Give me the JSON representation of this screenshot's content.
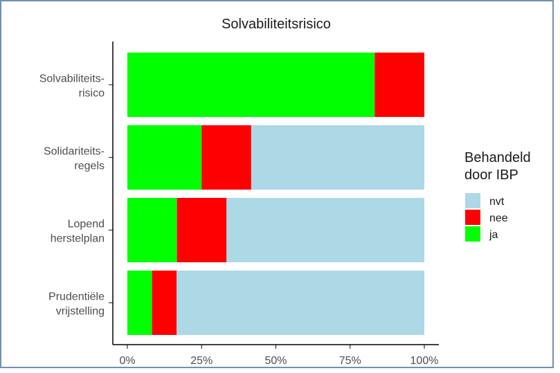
{
  "chart_data": {
    "type": "bar",
    "orientation": "horizontal",
    "stacked": "percent",
    "title": "Solvabiliteitsrisico",
    "categories": [
      [
        "Solvabiliteits-",
        "risico"
      ],
      [
        "Solidariteits-",
        "regels"
      ],
      [
        "Lopend",
        "herstelplan"
      ],
      [
        "Prudentiële",
        "vrijstelling"
      ]
    ],
    "series": [
      {
        "name": "ja",
        "color": "#00ff00",
        "values": [
          83.3,
          25.0,
          16.7,
          8.3
        ]
      },
      {
        "name": "nee",
        "color": "#ff0000",
        "values": [
          16.7,
          16.7,
          16.7,
          8.3
        ]
      },
      {
        "name": "nvt",
        "color": "#add8e6",
        "values": [
          0,
          58.3,
          66.6,
          83.4
        ]
      }
    ],
    "xlim": [
      0,
      100
    ],
    "xticks": [
      "0%",
      "25%",
      "50%",
      "75%",
      "100%"
    ],
    "xlabel": "",
    "ylabel": "",
    "grid": false,
    "legend": {
      "title": [
        "Behandeld",
        "door IBP"
      ],
      "position": "right",
      "order": [
        "nvt",
        "nee",
        "ja"
      ]
    }
  }
}
